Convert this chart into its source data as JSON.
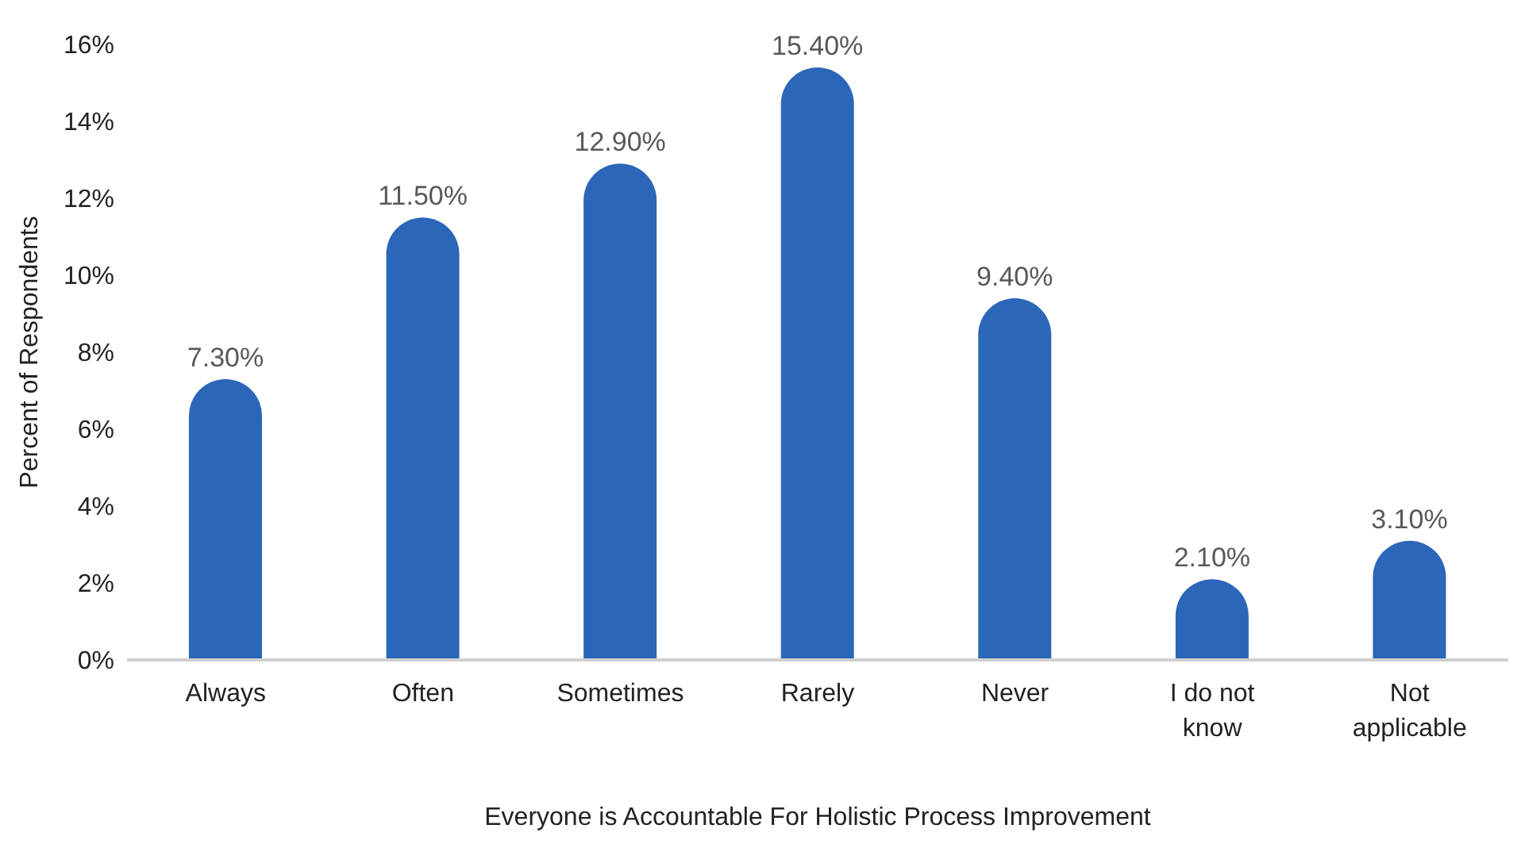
{
  "chart_data": {
    "type": "bar",
    "xlabel": "Everyone is Accountable For Holistic Process Improvement",
    "ylabel": "Percent of Respondents",
    "categories": [
      "Always",
      "Often",
      "Sometimes",
      "Rarely",
      "Never",
      "I do not know",
      "Not applicable"
    ],
    "values": [
      7.3,
      11.5,
      12.9,
      15.4,
      9.4,
      2.1,
      3.1
    ],
    "value_labels": [
      "7.30%",
      "11.50%",
      "12.90%",
      "15.40%",
      "9.40%",
      "2.10%",
      "3.10%"
    ],
    "color": "#2b66b8",
    "ylim": [
      0,
      16
    ],
    "yticks": [
      {
        "value": 0,
        "label": "0%"
      },
      {
        "value": 2,
        "label": "2%"
      },
      {
        "value": 4,
        "label": "4%"
      },
      {
        "value": 6,
        "label": "6%"
      },
      {
        "value": 8,
        "label": "8%"
      },
      {
        "value": 10,
        "label": "10%"
      },
      {
        "value": 12,
        "label": "12%"
      },
      {
        "value": 14,
        "label": "14%"
      },
      {
        "value": 16,
        "label": "16%"
      }
    ],
    "grid": false,
    "legend": false
  }
}
